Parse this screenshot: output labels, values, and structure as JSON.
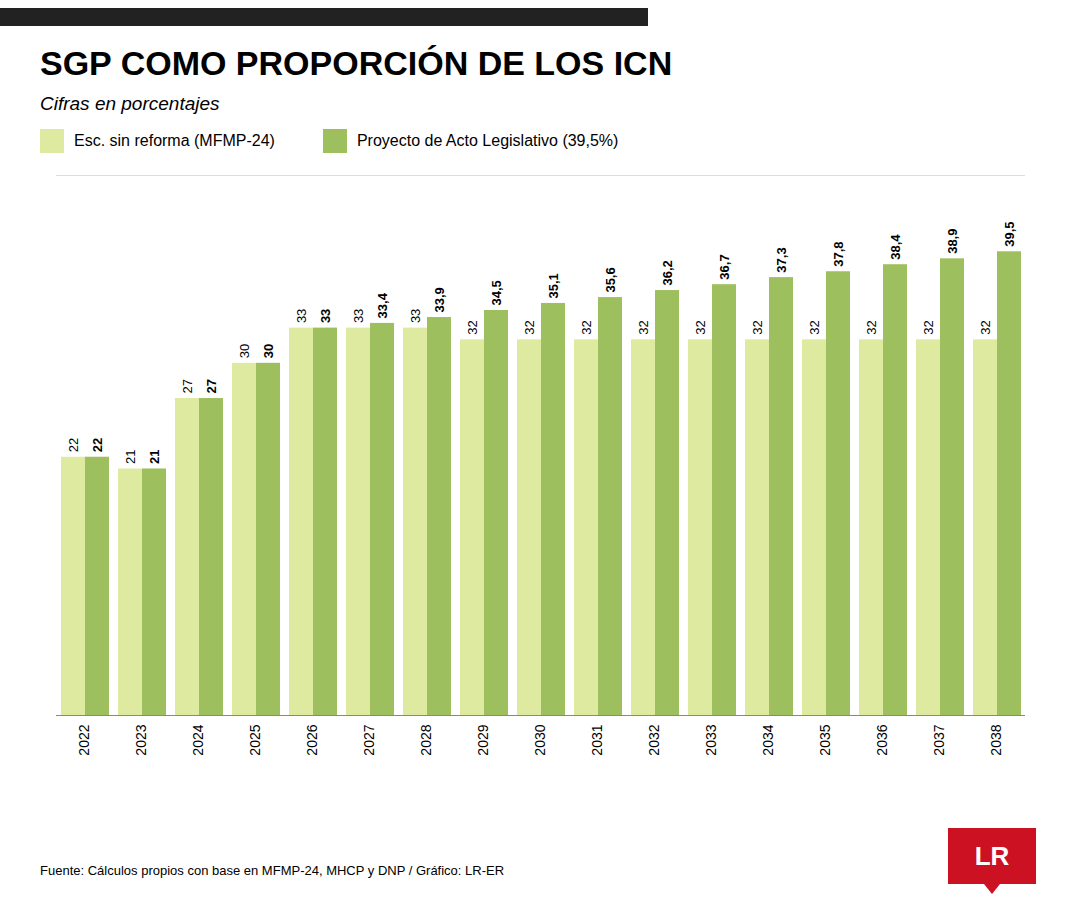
{
  "chart_data": {
    "type": "bar",
    "title": "SGP COMO PROPORCIÓN DE LOS ICN",
    "subtitle": "Cifras en porcentajes",
    "source": "Fuente: Cálculos propios con base en MFMP-24, MHCP y DNP / Gráfico: LR-ER",
    "annotations": [
      "LR"
    ],
    "categories": [
      "2022",
      "2023",
      "2024",
      "2025",
      "2026",
      "2027",
      "2028",
      "2029",
      "2030",
      "2031",
      "2032",
      "2033",
      "2034",
      "2035",
      "2036",
      "2037",
      "2038"
    ],
    "series": [
      {
        "name": "Esc. sin reforma (MFMP-24)",
        "color": "#deeaa0",
        "values": [
          22,
          21,
          27,
          30,
          33,
          33,
          33,
          32,
          32,
          32,
          32,
          32,
          32,
          32,
          32,
          32,
          32
        ]
      },
      {
        "name": "Proyecto de Acto Legislativo (39,5%)",
        "color": "#9dbf5e",
        "values": [
          22,
          21,
          27,
          30,
          33,
          33.4,
          33.9,
          34.5,
          35.1,
          35.6,
          36.2,
          36.7,
          37.3,
          37.8,
          38.4,
          38.9,
          39.5
        ],
        "value_labels": [
          "22",
          "21",
          "27",
          "30",
          "33",
          "33,4",
          "33,9",
          "34,5",
          "35,1",
          "35,6",
          "36,2",
          "36,7",
          "37,3",
          "37,8",
          "38,4",
          "38,9",
          "39,5"
        ]
      }
    ],
    "ylim": [
      0,
      46
    ],
    "data_labels": true,
    "legend": "top",
    "grid": false,
    "tick_labels": "x"
  }
}
